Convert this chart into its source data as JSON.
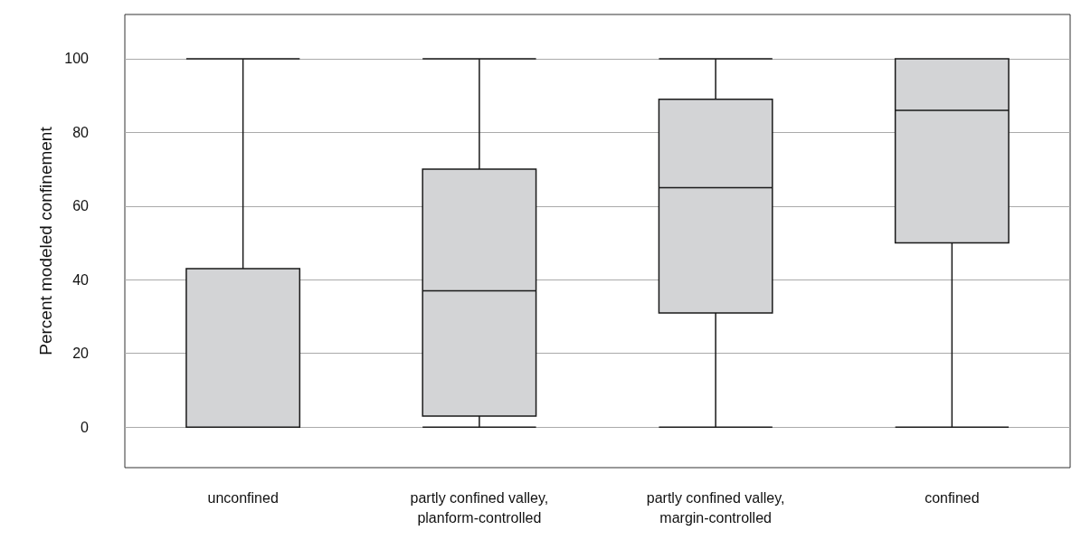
{
  "chart_data": {
    "type": "box",
    "ylabel": "Percent modeled confinement",
    "categories": [
      "unconfined",
      "partly confined valley,\nplanform-controlled",
      "partly confined valley,\nmargin-controlled",
      "confined"
    ],
    "series": [
      {
        "color": "#d3d4d6",
        "boxes": [
          {
            "low": 0,
            "q1": 0,
            "median": 0,
            "q3": 43,
            "high": 100
          },
          {
            "low": 0,
            "q1": 3,
            "median": 37,
            "q3": 70,
            "high": 100
          },
          {
            "low": 0,
            "q1": 31,
            "median": 65,
            "q3": 89,
            "high": 100
          },
          {
            "low": 0,
            "q1": 50,
            "median": 86,
            "q3": 100,
            "high": 100
          }
        ]
      }
    ],
    "ylim": [
      -11,
      112
    ],
    "yticks": [
      0,
      20,
      40,
      60,
      80,
      100
    ],
    "grid": "y"
  }
}
